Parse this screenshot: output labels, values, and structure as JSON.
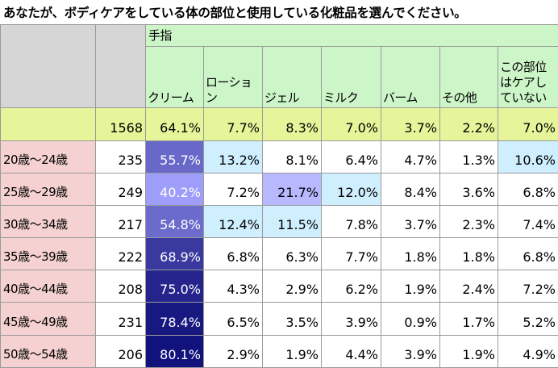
{
  "title": "あなたが、ボディケアをしている体の部位と使用している化粧品を選んでください。",
  "chart_data": {
    "type": "table",
    "group_label": "手指",
    "columns": [
      "クリーム",
      "ローション",
      "ジェル",
      "ミルク",
      "バーム",
      "その他",
      "この部位\nはケアし\nていない"
    ],
    "total": {
      "n": "1568",
      "values": [
        "64.1%",
        "7.7%",
        "8.3%",
        "7.0%",
        "3.7%",
        "2.2%",
        "7.0%"
      ]
    },
    "rows": [
      {
        "label": "20歳～24歳",
        "n": "235",
        "values": [
          "55.7%",
          "13.2%",
          "8.1%",
          "6.4%",
          "4.7%",
          "1.3%",
          "10.6%"
        ]
      },
      {
        "label": "25歳～29歳",
        "n": "249",
        "values": [
          "40.2%",
          "7.2%",
          "21.7%",
          "12.0%",
          "8.4%",
          "3.6%",
          "6.8%"
        ]
      },
      {
        "label": "30歳～34歳",
        "n": "217",
        "values": [
          "54.8%",
          "12.4%",
          "11.5%",
          "7.8%",
          "3.7%",
          "2.3%",
          "7.4%"
        ]
      },
      {
        "label": "35歳～39歳",
        "n": "222",
        "values": [
          "68.9%",
          "6.8%",
          "6.3%",
          "7.7%",
          "1.8%",
          "1.8%",
          "6.8%"
        ]
      },
      {
        "label": "40歳～44歳",
        "n": "208",
        "values": [
          "75.0%",
          "4.3%",
          "2.9%",
          "6.2%",
          "1.9%",
          "2.4%",
          "7.2%"
        ]
      },
      {
        "label": "45歳～49歳",
        "n": "231",
        "values": [
          "78.4%",
          "6.5%",
          "3.5%",
          "3.9%",
          "0.9%",
          "1.7%",
          "5.2%"
        ]
      },
      {
        "label": "50歳～54歳",
        "n": "206",
        "values": [
          "80.1%",
          "2.9%",
          "1.9%",
          "4.4%",
          "3.9%",
          "1.9%",
          "4.9%"
        ]
      }
    ],
    "colors": {
      "header_bg": "#ccf5c8",
      "total_row_bg": "#e6f59a",
      "age_label_bg": "#f6d1d1",
      "corner_bg": "#d6d6d6",
      "highlight_light_blue": "#cfeefe",
      "highlight_lavender": "#b8b8ff",
      "heat_cream_low": "#9f9ffb",
      "heat_cream_high": "#12127c"
    }
  }
}
